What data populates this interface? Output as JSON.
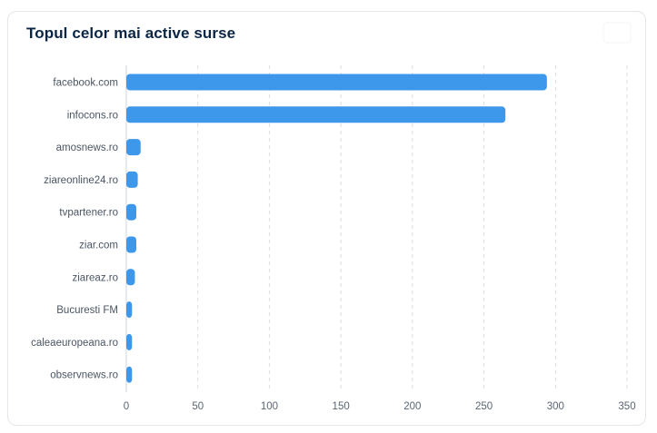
{
  "card": {
    "title": "Topul celor mai active surse"
  },
  "colors": {
    "bar": "#3d97ea",
    "grid": "#d9dde2",
    "title": "#0b2545"
  },
  "chart_data": {
    "type": "bar",
    "orientation": "horizontal",
    "title": "Topul celor mai active surse",
    "xlabel": "",
    "ylabel": "",
    "categories": [
      "facebook.com",
      "infocons.ro",
      "amosnews.ro",
      "ziareonline24.ro",
      "tvpartener.ro",
      "ziar.com",
      "ziareaz.ro",
      "Bucuresti FM",
      "caleaeuropeana.ro",
      "observnews.ro"
    ],
    "values": [
      294,
      265,
      10,
      8,
      7,
      7,
      6,
      4,
      4,
      4
    ],
    "xlim": [
      0,
      350
    ],
    "xticks": [
      "0",
      "50",
      "100",
      "150",
      "200",
      "250",
      "300",
      "350"
    ],
    "grid": "vertical-dashed",
    "legend": "none"
  }
}
